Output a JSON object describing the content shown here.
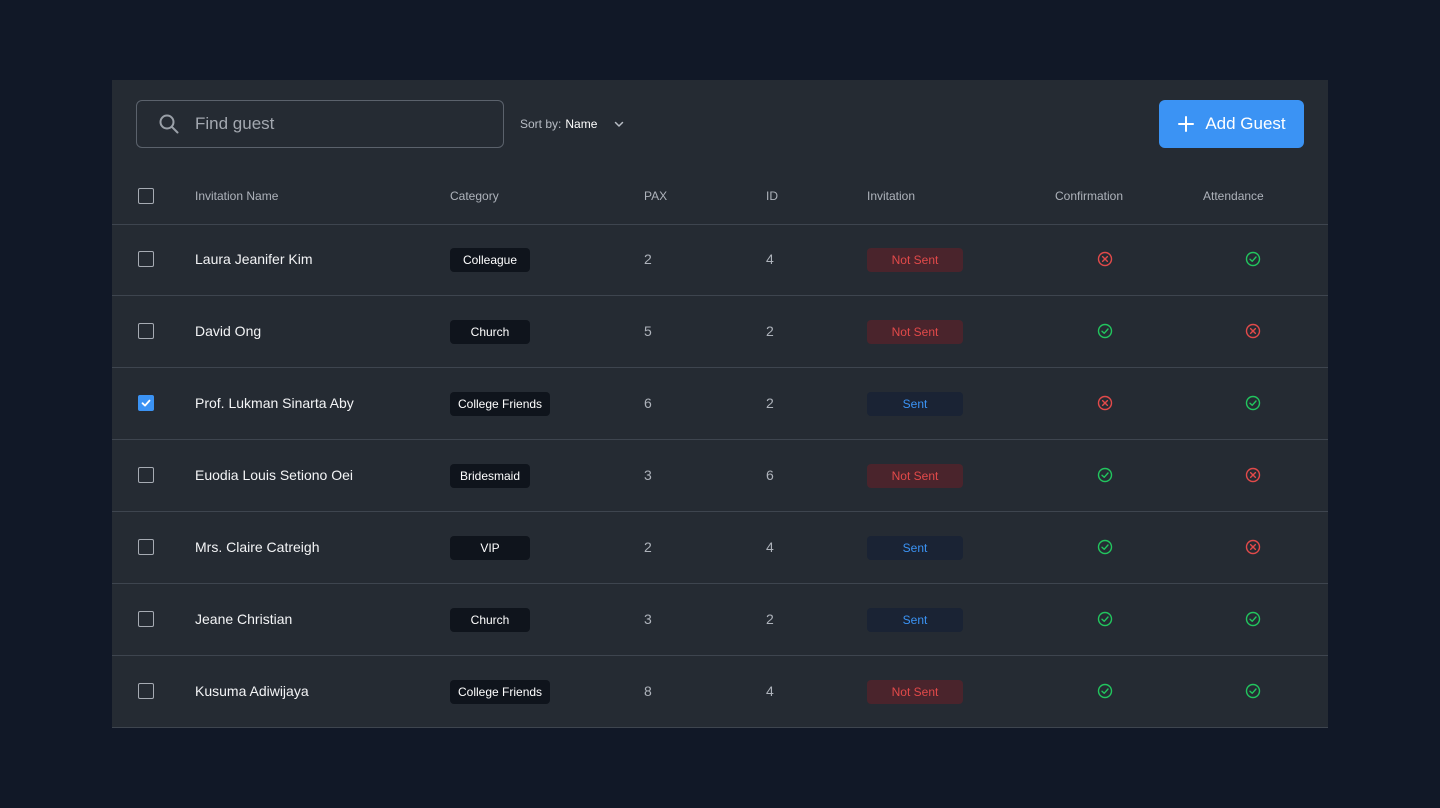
{
  "toolbar": {
    "search_placeholder": "Find guest",
    "sort_label": "Sort by:",
    "sort_value": "Name",
    "add_label": "Add Guest"
  },
  "columns": {
    "name": "Invitation Name",
    "category": "Category",
    "pax": "PAX",
    "id": "ID",
    "invitation": "Invitation",
    "confirmation": "Confirmation",
    "attendance": "Attendance"
  },
  "colors": {
    "accent": "#3b93f4",
    "success": "#22c55e",
    "danger": "#e24a4a",
    "background": "#111827",
    "panel": "#252b33"
  },
  "rows": [
    {
      "name": "Laura Jeanifer Kim",
      "category": "Colleague",
      "pax": "2",
      "id": "4",
      "invitation": "Not Sent",
      "sent": false,
      "confirmation": false,
      "attendance": true,
      "checked": false
    },
    {
      "name": "David Ong",
      "category": "Church",
      "pax": "5",
      "id": "2",
      "invitation": "Not Sent",
      "sent": false,
      "confirmation": true,
      "attendance": false,
      "checked": false
    },
    {
      "name": "Prof. Lukman Sinarta Aby",
      "category": "College Friends",
      "pax": "6",
      "id": "2",
      "invitation": "Sent",
      "sent": true,
      "confirmation": false,
      "attendance": true,
      "checked": true
    },
    {
      "name": "Euodia Louis Setiono Oei",
      "category": "Bridesmaid",
      "pax": "3",
      "id": "6",
      "invitation": "Not Sent",
      "sent": false,
      "confirmation": true,
      "attendance": false,
      "checked": false
    },
    {
      "name": "Mrs. Claire Catreigh",
      "category": "VIP",
      "pax": "2",
      "id": "4",
      "invitation": "Sent",
      "sent": true,
      "confirmation": true,
      "attendance": false,
      "checked": false
    },
    {
      "name": "Jeane Christian",
      "category": "Church",
      "pax": "3",
      "id": "2",
      "invitation": "Sent",
      "sent": true,
      "confirmation": true,
      "attendance": true,
      "checked": false
    },
    {
      "name": "Kusuma Adiwijaya",
      "category": "College Friends",
      "pax": "8",
      "id": "4",
      "invitation": "Not Sent",
      "sent": false,
      "confirmation": true,
      "attendance": true,
      "checked": false
    }
  ]
}
